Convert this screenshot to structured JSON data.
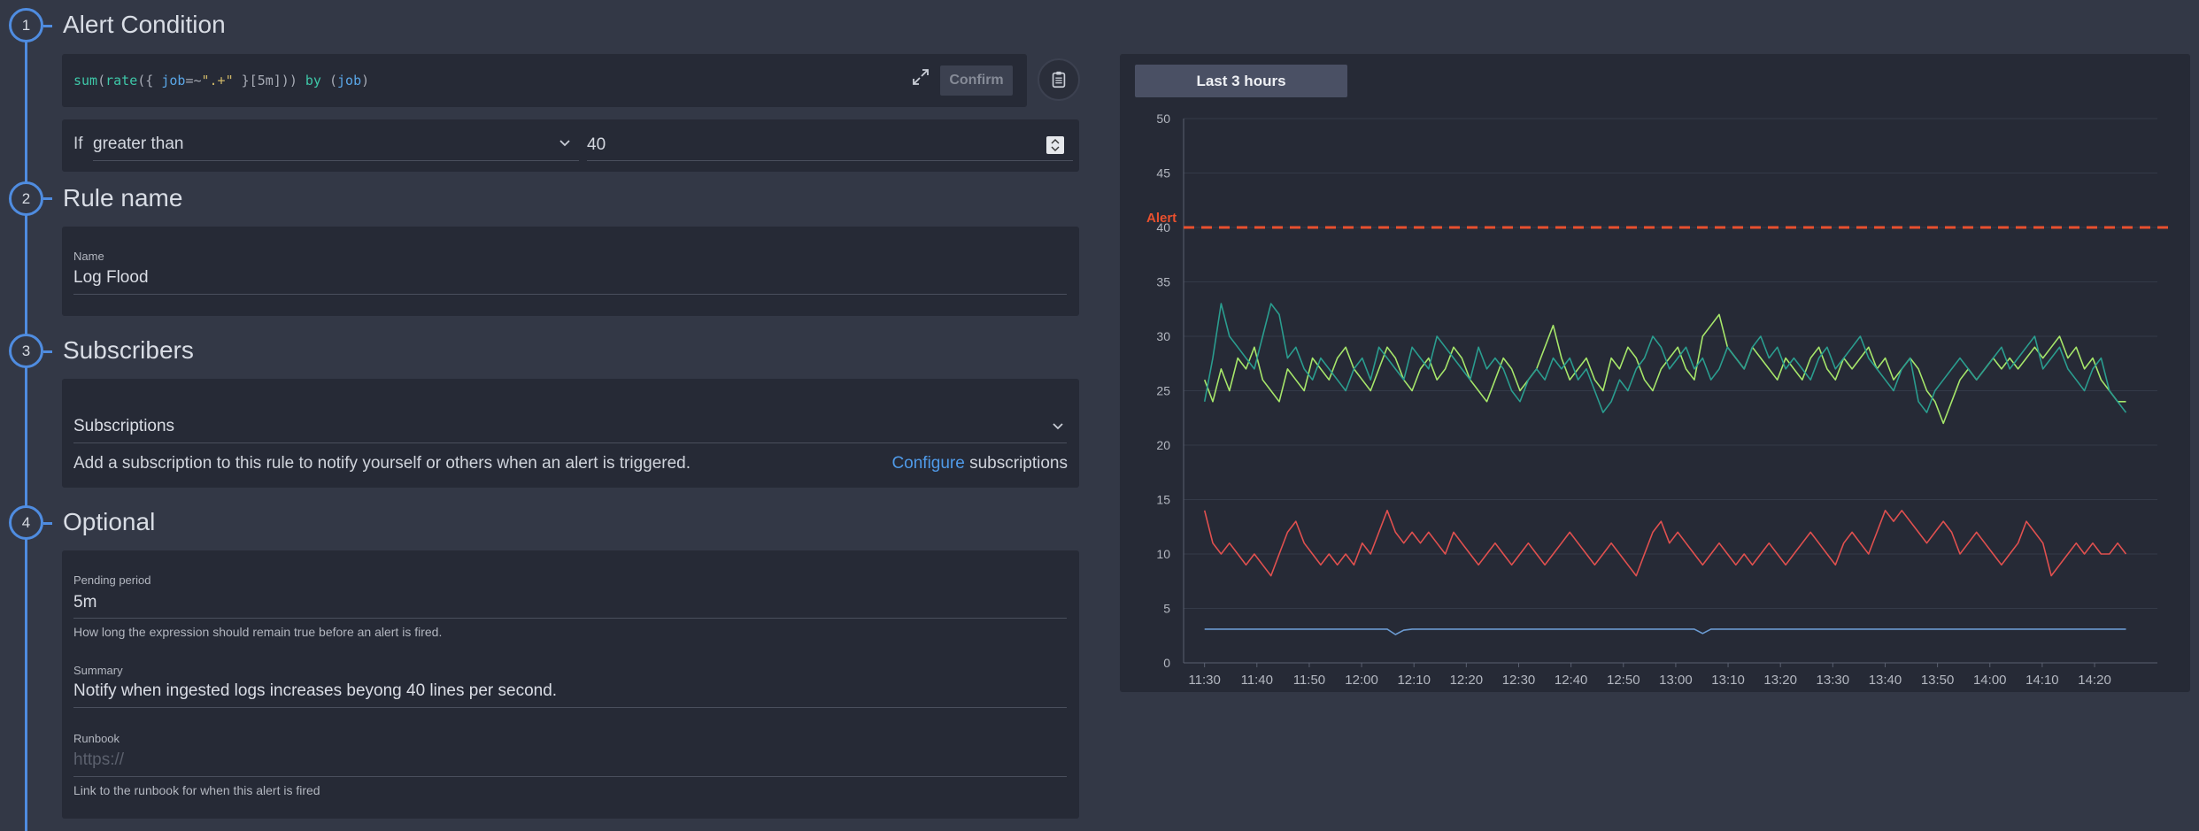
{
  "steps": [
    {
      "number": "1",
      "title": "Alert Condition"
    },
    {
      "number": "2",
      "title": "Rule name"
    },
    {
      "number": "3",
      "title": "Subscribers"
    },
    {
      "number": "4",
      "title": "Optional"
    }
  ],
  "query": {
    "tokens": [
      {
        "t": "sum",
        "c": "fn"
      },
      {
        "t": "(",
        "c": ""
      },
      {
        "t": "rate",
        "c": "fn"
      },
      {
        "t": "({ ",
        "c": ""
      },
      {
        "t": "job",
        "c": "lbl"
      },
      {
        "t": "=~",
        "c": ""
      },
      {
        "t": "\".+\"",
        "c": "str"
      },
      {
        "t": " }[5m])) ",
        "c": ""
      },
      {
        "t": "by",
        "c": "fn"
      },
      {
        "t": " (",
        "c": ""
      },
      {
        "t": "job",
        "c": "lbl"
      },
      {
        "t": ")",
        "c": ""
      }
    ],
    "confirm_label": "Confirm"
  },
  "condition": {
    "if_label": "If",
    "operator": "greater than",
    "threshold": "40"
  },
  "rule_name": {
    "label": "Name",
    "value": "Log Flood"
  },
  "subscribers": {
    "select_label": "Subscriptions",
    "description": "Add a subscription to this rule to notify yourself or others when an alert is triggered.",
    "configure_link": "Configure",
    "configure_suffix": " subscriptions"
  },
  "optional": {
    "pending": {
      "label": "Pending period",
      "value": "5m",
      "help": "How long the expression should remain true before an alert is fired."
    },
    "summary": {
      "label": "Summary",
      "value": "Notify when ingested logs increases beyong 40 lines per second."
    },
    "runbook": {
      "label": "Runbook",
      "placeholder": "https://",
      "help": "Link to the runbook for when this alert is fired"
    }
  },
  "chart_toolbar": {
    "range_label": "Last 3 hours"
  },
  "colors": {
    "accent": "#4f8ce0",
    "alert": "#e8502e",
    "series_green": "#a6e66a",
    "series_teal": "#2a9d8f",
    "series_red": "#e0504f",
    "series_blue": "#6c9bd2"
  },
  "chart_data": {
    "type": "line",
    "ylim": [
      0,
      50
    ],
    "yticks": [
      "0",
      "5",
      "10",
      "15",
      "20",
      "25",
      "30",
      "35",
      "40",
      "45",
      "50"
    ],
    "xticks": [
      "11:30",
      "11:40",
      "11:50",
      "12:00",
      "12:10",
      "12:20",
      "12:30",
      "12:40",
      "12:50",
      "13:00",
      "13:10",
      "13:20",
      "13:30",
      "13:40",
      "13:50",
      "14:00",
      "14:10",
      "14:20"
    ],
    "xrange_minutes": [
      -4,
      182
    ],
    "threshold": {
      "label": "Alert",
      "value": 40
    },
    "grid": true,
    "series": [
      {
        "color_key": "series_green",
        "values": [
          26,
          24,
          27,
          25,
          28,
          27,
          29,
          26,
          25,
          24,
          27,
          26,
          25,
          28,
          27,
          26,
          28,
          29,
          27,
          26,
          25,
          27,
          29,
          28,
          26,
          25,
          27,
          28,
          26,
          27,
          29,
          28,
          26,
          25,
          24,
          26,
          28,
          27,
          25,
          26,
          27,
          29,
          31,
          28,
          26,
          27,
          28,
          26,
          25,
          28,
          27,
          29,
          28,
          26,
          25,
          27,
          28,
          29,
          27,
          26,
          30,
          31,
          32,
          29,
          28,
          27,
          29,
          28,
          27,
          26,
          28,
          27,
          26,
          28,
          29,
          27,
          26,
          28,
          27,
          28,
          29,
          27,
          28,
          26,
          27,
          28,
          27,
          25,
          24,
          22,
          24,
          26,
          27,
          26,
          27,
          28,
          27,
          28,
          27,
          28,
          29,
          28,
          29,
          30,
          28,
          29,
          27,
          28,
          26,
          25,
          24,
          24
        ]
      },
      {
        "color_key": "series_teal",
        "values": [
          24,
          28,
          33,
          30,
          29,
          28,
          27,
          30,
          33,
          32,
          28,
          29,
          27,
          26,
          28,
          27,
          26,
          25,
          27,
          28,
          26,
          29,
          28,
          27,
          26,
          29,
          28,
          27,
          30,
          29,
          28,
          27,
          26,
          29,
          27,
          28,
          27,
          25,
          24,
          26,
          27,
          26,
          28,
          27,
          28,
          26,
          27,
          25,
          23,
          24,
          26,
          25,
          27,
          28,
          30,
          29,
          27,
          28,
          29,
          27,
          28,
          26,
          27,
          29,
          28,
          27,
          29,
          30,
          28,
          29,
          27,
          28,
          27,
          26,
          28,
          29,
          27,
          28,
          29,
          30,
          28,
          27,
          26,
          25,
          27,
          28,
          24,
          23,
          25,
          26,
          27,
          28,
          27,
          26,
          27,
          28,
          29,
          27,
          28,
          29,
          30,
          27,
          28,
          29,
          27,
          26,
          25,
          27,
          28,
          25,
          24,
          23
        ]
      },
      {
        "color_key": "series_red",
        "values": [
          14,
          11,
          10,
          11,
          10,
          9,
          10,
          9,
          8,
          10,
          12,
          13,
          11,
          10,
          9,
          10,
          9,
          10,
          9,
          11,
          10,
          12,
          14,
          12,
          11,
          12,
          11,
          12,
          11,
          10,
          12,
          11,
          10,
          9,
          10,
          11,
          10,
          9,
          10,
          11,
          10,
          9,
          10,
          11,
          12,
          11,
          10,
          9,
          10,
          11,
          10,
          9,
          8,
          10,
          12,
          13,
          11,
          12,
          11,
          10,
          9,
          10,
          11,
          10,
          9,
          10,
          9,
          10,
          11,
          10,
          9,
          10,
          11,
          12,
          11,
          10,
          9,
          11,
          12,
          11,
          10,
          12,
          14,
          13,
          14,
          13,
          12,
          11,
          12,
          13,
          12,
          10,
          11,
          12,
          11,
          10,
          9,
          10,
          11,
          13,
          12,
          11,
          8,
          9,
          10,
          11,
          10,
          11,
          10,
          10,
          11,
          10
        ]
      },
      {
        "color_key": "series_blue",
        "values": [
          3.1,
          3.1,
          3.1,
          3.1,
          3.1,
          3.1,
          3.1,
          3.1,
          3.1,
          3.1,
          3.1,
          3.1,
          3.1,
          3.1,
          3.1,
          3.1,
          3.1,
          3.1,
          3.1,
          3.1,
          3.1,
          3.1,
          3.1,
          2.6,
          3.0,
          3.1,
          3.1,
          3.1,
          3.1,
          3.1,
          3.1,
          3.1,
          3.1,
          3.1,
          3.1,
          3.1,
          3.1,
          3.1,
          3.1,
          3.1,
          3.1,
          3.1,
          3.1,
          3.1,
          3.1,
          3.1,
          3.1,
          3.1,
          3.1,
          3.1,
          3.1,
          3.1,
          3.1,
          3.1,
          3.1,
          3.1,
          3.1,
          3.1,
          3.1,
          3.1,
          2.7,
          3.1,
          3.1,
          3.1,
          3.1,
          3.1,
          3.1,
          3.1,
          3.1,
          3.1,
          3.1,
          3.1,
          3.1,
          3.1,
          3.1,
          3.1,
          3.1,
          3.1,
          3.1,
          3.1,
          3.1,
          3.1,
          3.1,
          3.1,
          3.1,
          3.1,
          3.1,
          3.1,
          3.1,
          3.1,
          3.1,
          3.1,
          3.1,
          3.1,
          3.1,
          3.1,
          3.1,
          3.1,
          3.1,
          3.1,
          3.1,
          3.1,
          3.1,
          3.1,
          3.1,
          3.1,
          3.1,
          3.1,
          3.1,
          3.1,
          3.1,
          3.1
        ]
      }
    ]
  }
}
